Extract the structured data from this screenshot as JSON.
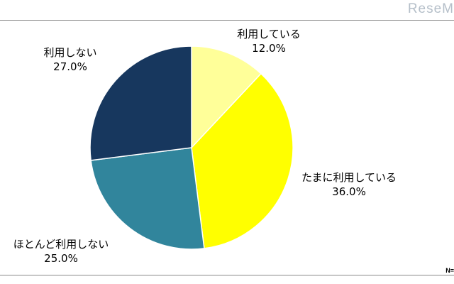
{
  "watermark": "ReseM",
  "sample_note": "N=",
  "chart_data": {
    "type": "pie",
    "title": "",
    "start_angle_deg": 0,
    "direction": "clockwise",
    "slices": [
      {
        "label": "利用している",
        "value": 12.0,
        "value_label": "12.0%",
        "color": "#ffff99"
      },
      {
        "label": "たまに利用している",
        "value": 36.0,
        "value_label": "36.0%",
        "color": "#ffff00"
      },
      {
        "label": "ほとんど利用しない",
        "value": 25.0,
        "value_label": "25.0%",
        "color": "#31859c"
      },
      {
        "label": "利用しない",
        "value": 27.0,
        "value_label": "27.0%",
        "color": "#17375e"
      }
    ],
    "legend": "none"
  }
}
